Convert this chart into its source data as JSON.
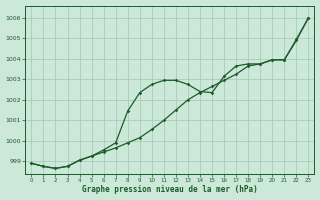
{
  "title": "Graphe pression niveau de la mer (hPa)",
  "background_color": "#cce8d8",
  "grid_color": "#aaccbb",
  "line_color": "#1a5c28",
  "ylim": [
    998.4,
    1006.6
  ],
  "xlim": [
    -0.5,
    23.5
  ],
  "yticks": [
    999,
    1000,
    1001,
    1002,
    1003,
    1004,
    1005,
    1006
  ],
  "xticks": [
    0,
    1,
    2,
    3,
    4,
    5,
    6,
    7,
    8,
    9,
    10,
    11,
    12,
    13,
    14,
    15,
    16,
    17,
    18,
    19,
    20,
    21,
    22,
    23
  ],
  "series1": [
    998.9,
    998.75,
    998.65,
    998.75,
    999.05,
    999.25,
    999.45,
    999.65,
    999.9,
    1000.15,
    1000.55,
    1001.0,
    1001.5,
    1002.0,
    1002.35,
    1002.65,
    1002.95,
    1003.25,
    1003.65,
    1003.75,
    1003.95,
    1003.95,
    1004.95,
    1006.0
  ],
  "series2": [
    998.9,
    998.75,
    998.65,
    998.75,
    999.05,
    999.25,
    999.55,
    999.9,
    1001.45,
    1002.35,
    1002.75,
    1002.95,
    1002.95,
    1002.75,
    1002.4,
    1002.35,
    1003.15,
    1003.65,
    1003.75,
    1003.75,
    1003.95,
    1003.95,
    1004.9,
    1006.0
  ]
}
